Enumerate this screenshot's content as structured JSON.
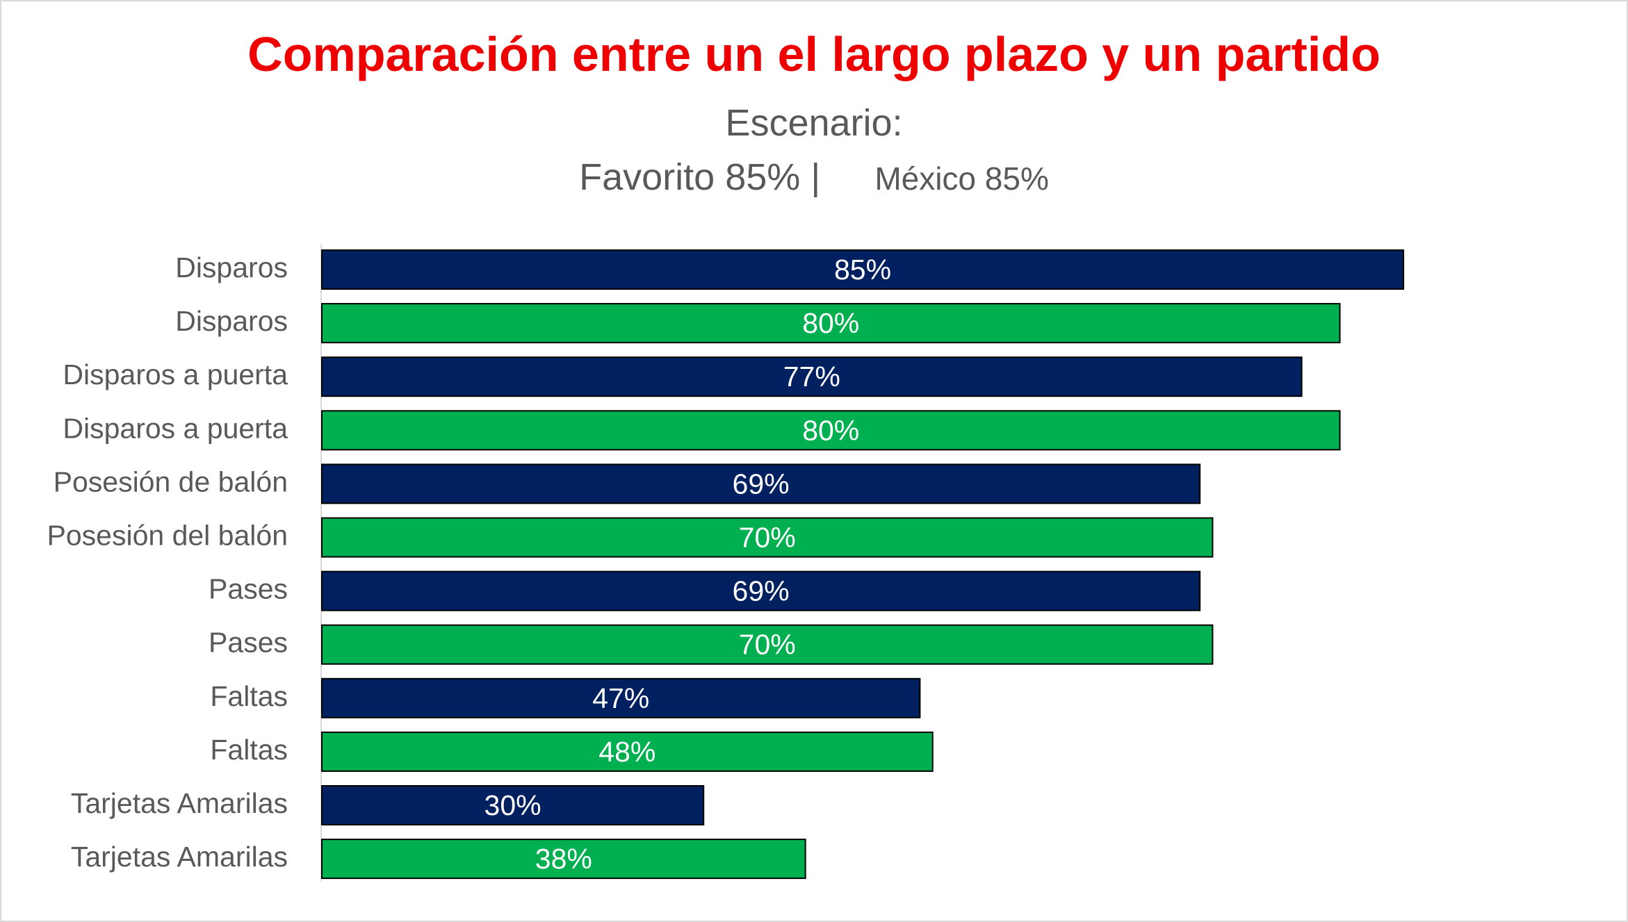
{
  "chart_data": {
    "type": "bar",
    "orientation": "horizontal",
    "title": "Comparación entre un el largo plazo y un partido",
    "subtitle_line1": "Escenario:",
    "subtitle_line2_a": "Favorito 85% |",
    "subtitle_line2_b": "México 85%",
    "xlim": [
      0,
      100
    ],
    "grid": false,
    "legend": "none",
    "bars": [
      {
        "category": "Disparos",
        "value": 85,
        "label": "85%",
        "color": "#002060"
      },
      {
        "category": "Disparos",
        "value": 80,
        "label": "80%",
        "color": "#00b050"
      },
      {
        "category": "Disparos a puerta",
        "value": 77,
        "label": "77%",
        "color": "#002060"
      },
      {
        "category": "Disparos a puerta",
        "value": 80,
        "label": "80%",
        "color": "#00b050"
      },
      {
        "category": "Posesión de balón",
        "value": 69,
        "label": "69%",
        "color": "#002060"
      },
      {
        "category": "Posesión del balón",
        "value": 70,
        "label": "70%",
        "color": "#00b050"
      },
      {
        "category": "Pases",
        "value": 69,
        "label": "69%",
        "color": "#002060"
      },
      {
        "category": "Pases",
        "value": 70,
        "label": "70%",
        "color": "#00b050"
      },
      {
        "category": "Faltas",
        "value": 47,
        "label": "47%",
        "color": "#002060"
      },
      {
        "category": "Faltas",
        "value": 48,
        "label": "48%",
        "color": "#00b050"
      },
      {
        "category": "Tarjetas Amarilas",
        "value": 30,
        "label": "30%",
        "color": "#002060"
      },
      {
        "category": "Tarjetas Amarilas",
        "value": 38,
        "label": "38%",
        "color": "#00b050"
      }
    ],
    "colors": {
      "title": "#ee0000",
      "text": "#595959",
      "long_term": "#002060",
      "match": "#00b050"
    }
  }
}
